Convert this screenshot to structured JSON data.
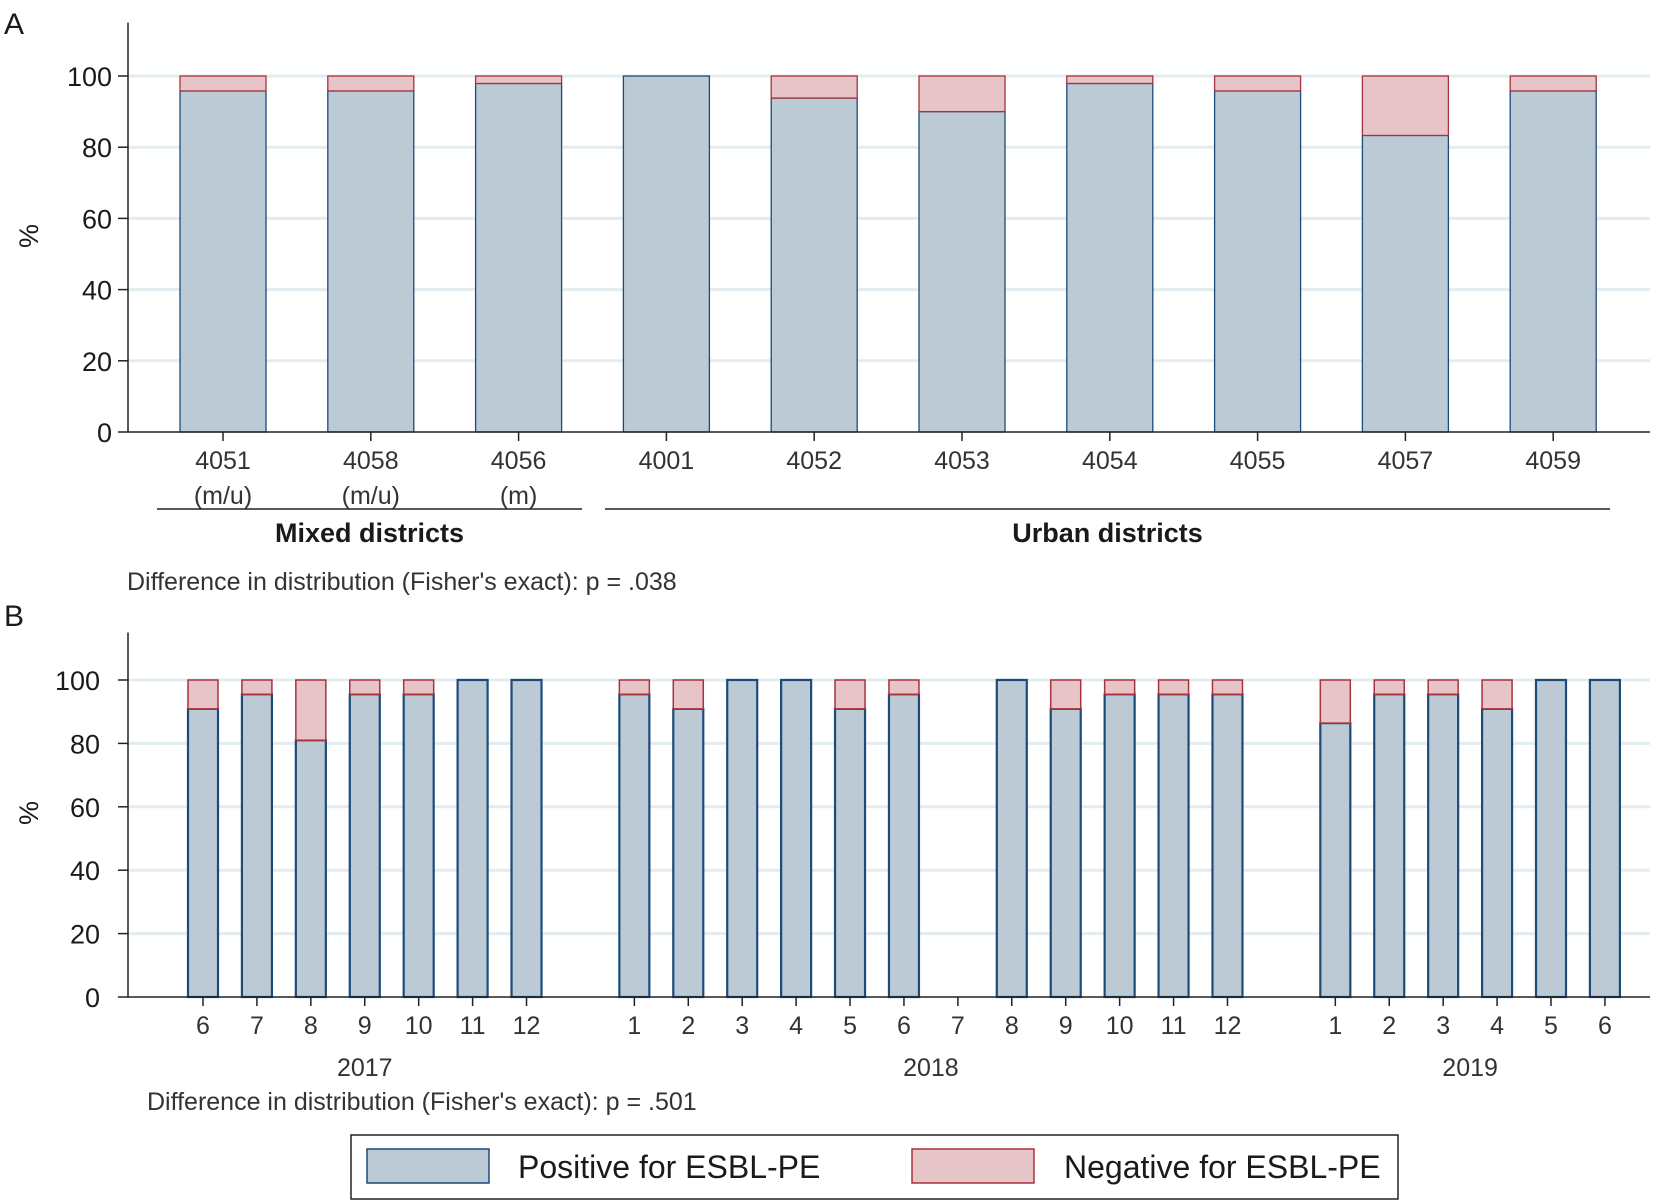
{
  "chart_data": [
    {
      "type": "stacked_bar",
      "panel_label": "A",
      "ylabel": "%",
      "ylim": [
        0,
        100
      ],
      "yticks": [
        "0",
        "20",
        "40",
        "60",
        "80",
        "100"
      ],
      "grid": true,
      "categories": [
        {
          "label": "4051",
          "sub": "(m/u)"
        },
        {
          "label": "4058",
          "sub": "(m/u)"
        },
        {
          "label": "4056",
          "sub": "(m)"
        },
        {
          "label": "4001",
          "sub": ""
        },
        {
          "label": "4052",
          "sub": ""
        },
        {
          "label": "4053",
          "sub": ""
        },
        {
          "label": "4054",
          "sub": ""
        },
        {
          "label": "4055",
          "sub": ""
        },
        {
          "label": "4057",
          "sub": ""
        },
        {
          "label": "4059",
          "sub": ""
        }
      ],
      "series": [
        {
          "name": "Positive for ESBL-PE",
          "values": [
            95.8,
            95.8,
            97.9,
            100,
            93.8,
            90,
            97.9,
            95.8,
            83.3,
            95.8
          ]
        },
        {
          "name": "Negative for ESBL-PE",
          "values": [
            4.2,
            4.2,
            2.1,
            0,
            6.2,
            10,
            2.1,
            4.2,
            16.7,
            4.2
          ]
        }
      ],
      "groups": [
        {
          "label": "Mixed districts",
          "from": 0,
          "to": 2
        },
        {
          "label": "Urban districts",
          "from": 3,
          "to": 9
        }
      ],
      "note": "Difference in distribution (Fisher's exact): p = .038"
    },
    {
      "type": "stacked_bar",
      "panel_label": "B",
      "ylabel": "%",
      "ylim": [
        0,
        100
      ],
      "yticks": [
        "0",
        "20",
        "40",
        "60",
        "80",
        "100"
      ],
      "grid": true,
      "categories": [
        {
          "label": "6",
          "slot": 0,
          "pos": 90.9
        },
        {
          "label": "7",
          "slot": 1,
          "pos": 95.5
        },
        {
          "label": "8",
          "slot": 2,
          "pos": 81
        },
        {
          "label": "9",
          "slot": 3,
          "pos": 95.5
        },
        {
          "label": "10",
          "slot": 4,
          "pos": 95.5
        },
        {
          "label": "11",
          "slot": 5,
          "pos": 100
        },
        {
          "label": "12",
          "slot": 6,
          "pos": 100
        },
        {
          "label": "1",
          "slot": 8,
          "pos": 95.5
        },
        {
          "label": "2",
          "slot": 9,
          "pos": 90.9
        },
        {
          "label": "3",
          "slot": 10,
          "pos": 100
        },
        {
          "label": "4",
          "slot": 11,
          "pos": 100
        },
        {
          "label": "5",
          "slot": 12,
          "pos": 90.9
        },
        {
          "label": "6",
          "slot": 13,
          "pos": 95.5
        },
        {
          "label": "7",
          "slot": 14,
          "pos": null
        },
        {
          "label": "8",
          "slot": 15,
          "pos": 100
        },
        {
          "label": "9",
          "slot": 16,
          "pos": 90.9
        },
        {
          "label": "10",
          "slot": 17,
          "pos": 95.5
        },
        {
          "label": "11",
          "slot": 18,
          "pos": 95.5
        },
        {
          "label": "12",
          "slot": 19,
          "pos": 95.5
        },
        {
          "label": "1",
          "slot": 21,
          "pos": 86.4
        },
        {
          "label": "2",
          "slot": 22,
          "pos": 95.5
        },
        {
          "label": "3",
          "slot": 23,
          "pos": 95.5
        },
        {
          "label": "4",
          "slot": 24,
          "pos": 90.9
        },
        {
          "label": "5",
          "slot": 25,
          "pos": 100
        },
        {
          "label": "6",
          "slot": 26,
          "pos": 100
        }
      ],
      "years": [
        {
          "label": "2017",
          "from": 0,
          "to": 6
        },
        {
          "label": "2018",
          "from": 8,
          "to": 19
        },
        {
          "label": "2019",
          "from": 21,
          "to": 26
        }
      ],
      "note": "Difference in distribution (Fisher's exact): p = .501"
    }
  ],
  "legend": [
    {
      "label": "Positive for ESBL-PE",
      "color": "#bccad6"
    },
    {
      "label": "Negative for ESBL-PE",
      "color": "#e6c4c8"
    }
  ],
  "colors": {
    "positive_fill": "#bccad6",
    "positive_stroke": "#1c4b7a",
    "negative_fill": "#e6c4c8",
    "negative_stroke": "#a8323e",
    "grid": "#e3ecf0",
    "axis": "#222222"
  }
}
